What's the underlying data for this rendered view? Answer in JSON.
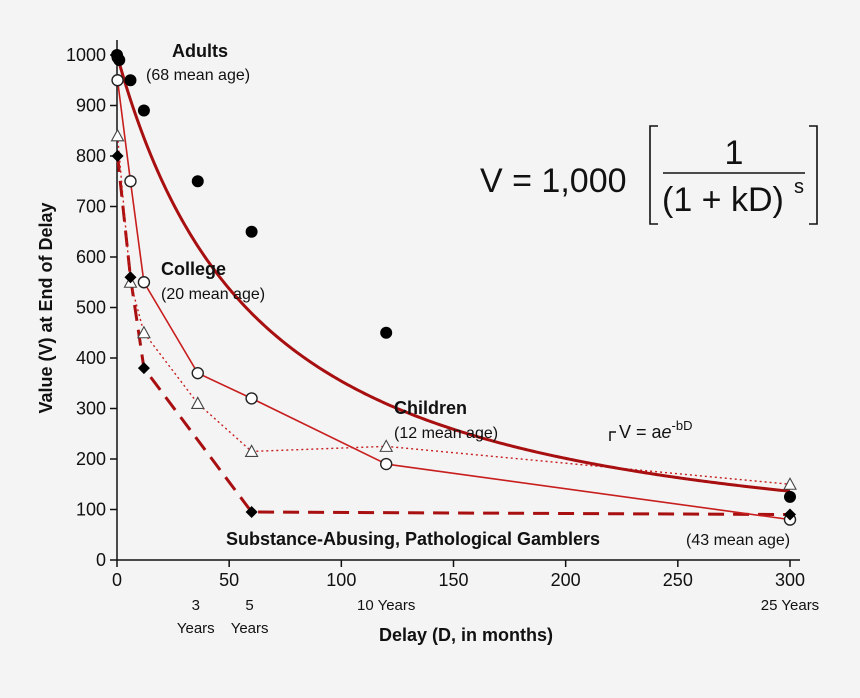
{
  "chart_data": {
    "type": "line",
    "xlabel": "Delay (D, in months)",
    "ylabel": "Value (V) at End of Delay",
    "xlim": [
      0,
      300
    ],
    "ylim": [
      0,
      1000
    ],
    "x_ticks": [
      0,
      50,
      100,
      150,
      200,
      250,
      300
    ],
    "y_ticks": [
      0,
      100,
      200,
      300,
      400,
      500,
      600,
      700,
      800,
      900,
      1000
    ],
    "year_labels": [
      {
        "x": 36,
        "line1": "3",
        "line2": "Years"
      },
      {
        "x": 60,
        "line1": "5",
        "line2": "Years"
      },
      {
        "x": 120,
        "line1": "10 Years",
        "line2": ""
      },
      {
        "x": 300,
        "line1": "25 Years",
        "line2": ""
      }
    ],
    "series": [
      {
        "name": "Adults",
        "age": "(68 mean age)",
        "marker": "filled-circle",
        "line": "fitted-curve",
        "x": [
          0,
          0.25,
          1,
          6,
          12,
          36,
          60,
          120,
          300
        ],
        "values": [
          1000,
          995,
          990,
          950,
          890,
          750,
          650,
          450,
          125
        ]
      },
      {
        "name": "College",
        "age": "(20 mean age)",
        "marker": "open-circle",
        "line": "solid",
        "x": [
          0.25,
          6,
          12,
          36,
          60,
          120,
          300
        ],
        "values": [
          950,
          750,
          550,
          370,
          320,
          190,
          80
        ]
      },
      {
        "name": "Children",
        "age": "(12 mean age)",
        "marker": "open-triangle",
        "line": "dotted",
        "x": [
          0.25,
          6,
          12,
          36,
          60,
          120,
          300
        ],
        "values": [
          840,
          550,
          450,
          310,
          215,
          225,
          150
        ]
      },
      {
        "name": "Substance-Abusing, Pathological Gamblers",
        "age": "(43 mean age)",
        "marker": "filled-diamond",
        "line": "dashed",
        "x": [
          0.25,
          6,
          12,
          60,
          300
        ],
        "values": [
          800,
          560,
          380,
          95,
          90
        ]
      }
    ],
    "annotations": {
      "formula_main": "V = 1,000",
      "formula_numerator": "1",
      "formula_denominator": "(1 + kD)",
      "formula_exponent": "s",
      "exp_label_main": "V = a",
      "exp_label_e": "e",
      "exp_label_exponent": "-bD"
    },
    "colors": {
      "curve": "#a80f10",
      "line": "#c81e1e",
      "marker_fill": "#000000",
      "open_fill": "#ffffff"
    }
  }
}
